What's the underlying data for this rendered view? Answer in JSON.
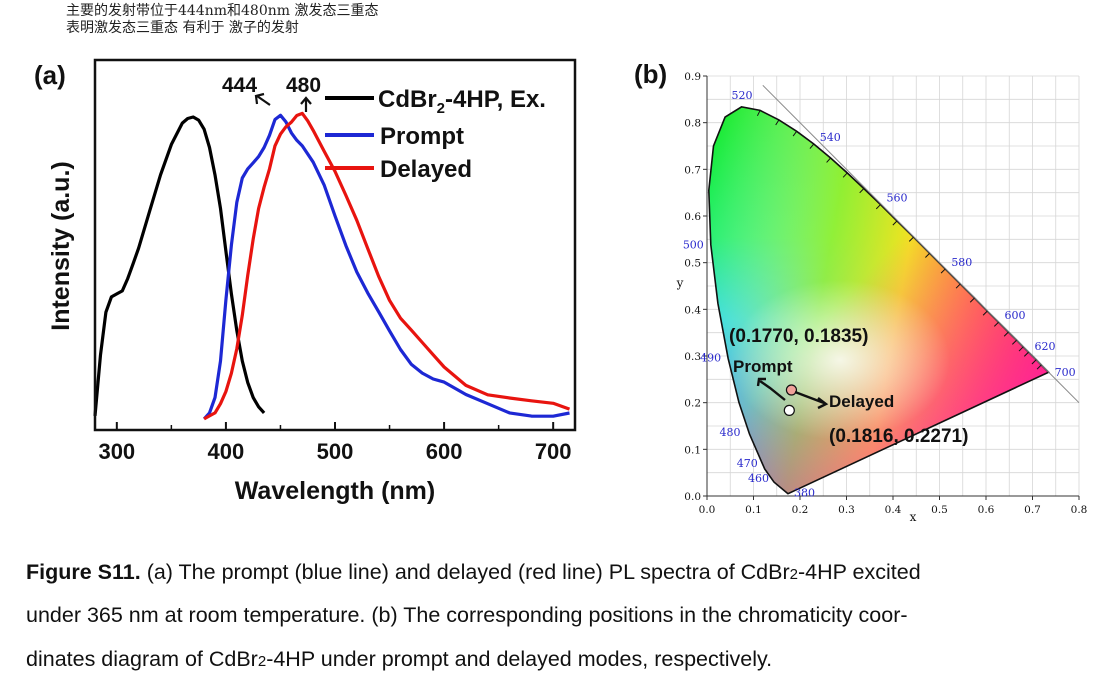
{
  "notes": {
    "line1": "主要的发射带位于444nm和480nm 激发态三重态",
    "line2": "表明激发态三重态 有利于 激子的发射"
  },
  "chart_data": [
    {
      "type": "line",
      "panel_label": "(a)",
      "xlabel": "Wavelength (nm)",
      "ylabel": "Intensity (a.u.)",
      "xlim": [
        280,
        720
      ],
      "xticks": [
        "300",
        "400",
        "500",
        "600",
        "700"
      ],
      "legend_placement": "top-right",
      "legend": {
        "ex_prefix": "CdBr",
        "ex_sub": "2",
        "ex_suffix": "-4HP, Ex.",
        "prompt": "Prompt",
        "delayed": "Delayed"
      },
      "annotations": {
        "peak1": "444",
        "peak2": "480"
      },
      "series": [
        {
          "name": "CdBr2-4HP, Ex.",
          "color": "#000000",
          "x": [
            280,
            285,
            290,
            295,
            300,
            305,
            310,
            315,
            320,
            330,
            340,
            350,
            360,
            365,
            370,
            375,
            380,
            385,
            390,
            395,
            400,
            405,
            410,
            415,
            420,
            425,
            430,
            435
          ],
          "y": [
            0.02,
            0.22,
            0.36,
            0.41,
            0.42,
            0.43,
            0.47,
            0.52,
            0.57,
            0.69,
            0.81,
            0.91,
            0.98,
            0.995,
            1.0,
            0.99,
            0.96,
            0.9,
            0.81,
            0.7,
            0.56,
            0.42,
            0.3,
            0.2,
            0.13,
            0.08,
            0.05,
            0.03
          ]
        },
        {
          "name": "Prompt",
          "color": "#1d28d4",
          "x": [
            380,
            385,
            390,
            395,
            400,
            405,
            410,
            415,
            420,
            425,
            430,
            435,
            440,
            445,
            450,
            455,
            460,
            465,
            470,
            480,
            490,
            500,
            510,
            520,
            530,
            540,
            550,
            560,
            570,
            580,
            590,
            600,
            620,
            640,
            660,
            680,
            700,
            715
          ],
          "y": [
            0.01,
            0.03,
            0.08,
            0.2,
            0.4,
            0.58,
            0.72,
            0.8,
            0.83,
            0.85,
            0.87,
            0.9,
            0.94,
            0.98,
            1.0,
            0.99,
            0.96,
            0.93,
            0.9,
            0.84,
            0.77,
            0.68,
            0.59,
            0.5,
            0.42,
            0.35,
            0.29,
            0.24,
            0.2,
            0.17,
            0.14,
            0.12,
            0.08,
            0.06,
            0.04,
            0.03,
            0.02,
            0.02
          ]
        },
        {
          "name": "Delayed",
          "color": "#e8140f",
          "x": [
            380,
            385,
            390,
            395,
            400,
            405,
            410,
            415,
            420,
            425,
            430,
            435,
            440,
            445,
            450,
            455,
            460,
            465,
            470,
            475,
            480,
            490,
            500,
            510,
            520,
            530,
            540,
            550,
            560,
            570,
            580,
            590,
            600,
            620,
            640,
            660,
            680,
            700,
            715
          ],
          "y": [
            0.01,
            0.02,
            0.03,
            0.06,
            0.1,
            0.16,
            0.24,
            0.35,
            0.48,
            0.6,
            0.7,
            0.77,
            0.83,
            0.9,
            0.95,
            0.98,
            0.99,
            1.0,
            1.0,
            0.98,
            0.96,
            0.9,
            0.83,
            0.74,
            0.65,
            0.56,
            0.48,
            0.41,
            0.35,
            0.3,
            0.25,
            0.21,
            0.18,
            0.13,
            0.1,
            0.08,
            0.06,
            0.05,
            0.04
          ]
        }
      ]
    },
    {
      "type": "scatter",
      "panel_label": "(b)",
      "xlabel": "x",
      "ylabel": "y",
      "xlim": [
        0.0,
        0.8
      ],
      "ylim": [
        0.0,
        0.9
      ],
      "grid": true,
      "xticks": [
        "0.0",
        "0.1",
        "0.2",
        "0.3",
        "0.4",
        "0.5",
        "0.6",
        "0.7",
        "0.8"
      ],
      "yticks": [
        "0.0",
        "0.1",
        "0.2",
        "0.3",
        "0.4",
        "0.5",
        "0.6",
        "0.7",
        "0.8",
        "0.9"
      ],
      "locus_labels": [
        {
          "text": "380",
          "x": 0.1741,
          "y": 0.005
        },
        {
          "text": "460",
          "x": 0.144,
          "y": 0.0297
        },
        {
          "text": "470",
          "x": 0.1241,
          "y": 0.0578
        },
        {
          "text": "480",
          "x": 0.0913,
          "y": 0.1327
        },
        {
          "text": "490",
          "x": 0.0454,
          "y": 0.295
        },
        {
          "text": "500",
          "x": 0.0082,
          "y": 0.5384
        },
        {
          "text": "520",
          "x": 0.0743,
          "y": 0.8338
        },
        {
          "text": "540",
          "x": 0.2296,
          "y": 0.7543
        },
        {
          "text": "560",
          "x": 0.3731,
          "y": 0.6245
        },
        {
          "text": "580",
          "x": 0.5125,
          "y": 0.4866
        },
        {
          "text": "600",
          "x": 0.627,
          "y": 0.3725
        },
        {
          "text": "620",
          "x": 0.6915,
          "y": 0.3083
        },
        {
          "text": "700",
          "x": 0.7347,
          "y": 0.2653
        }
      ],
      "points": [
        {
          "name": "Prompt",
          "x": 0.177,
          "y": 0.1835,
          "fill": "#ffffff",
          "label": "(0.1770, 0.1835)"
        },
        {
          "name": "Delayed",
          "x": 0.1816,
          "y": 0.2271,
          "fill": "#f0a29a",
          "label": "(0.1816, 0.2271)"
        }
      ],
      "point_labels": {
        "prompt": "Prompt",
        "delayed": "Delayed"
      }
    }
  ],
  "caption": {
    "label": "Figure S11.",
    "line1_text": " (a) The prompt (blue line) and delayed (red line) PL spectra of CdBr",
    "line1_sub": "2",
    "line1_end": "-4HP excited",
    "line2": "under 365 nm at room temperature. (b) The corresponding positions in the chromaticity coor-",
    "line3_start": "dinates diagram of CdBr",
    "line3_sub": "2",
    "line3_end": "-4HP under prompt and delayed modes, respectively."
  }
}
